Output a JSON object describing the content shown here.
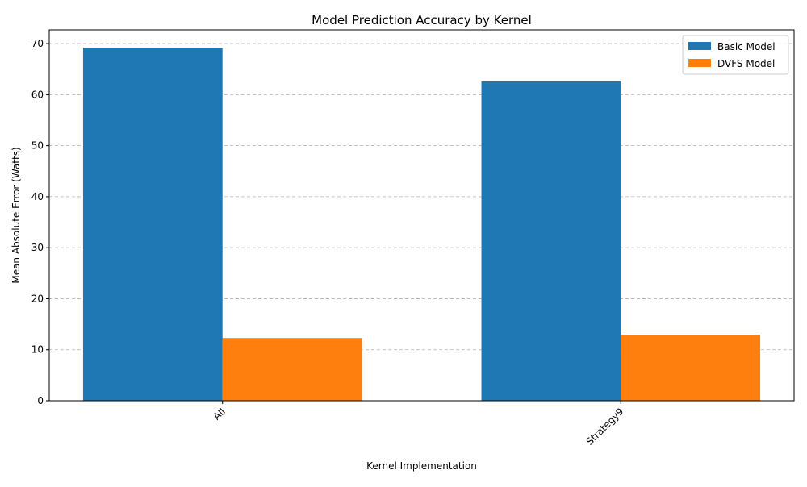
{
  "chart_data": {
    "type": "bar",
    "title": "Model Prediction Accuracy by Kernel",
    "xlabel": "Kernel Implementation",
    "ylabel": "Mean Absolute Error (Watts)",
    "categories": [
      "All",
      "Strategy9"
    ],
    "series": [
      {
        "name": "Basic Model",
        "values": [
          69.2,
          62.6
        ],
        "color": "#1f77b4"
      },
      {
        "name": "DVFS Model",
        "values": [
          12.3,
          12.9
        ],
        "color": "#ff7f0e"
      }
    ],
    "ylim": [
      0,
      72.7
    ],
    "yticks": [
      0,
      10,
      20,
      30,
      40,
      50,
      60,
      70
    ],
    "grid": "y dashed",
    "legend": "top-right"
  }
}
